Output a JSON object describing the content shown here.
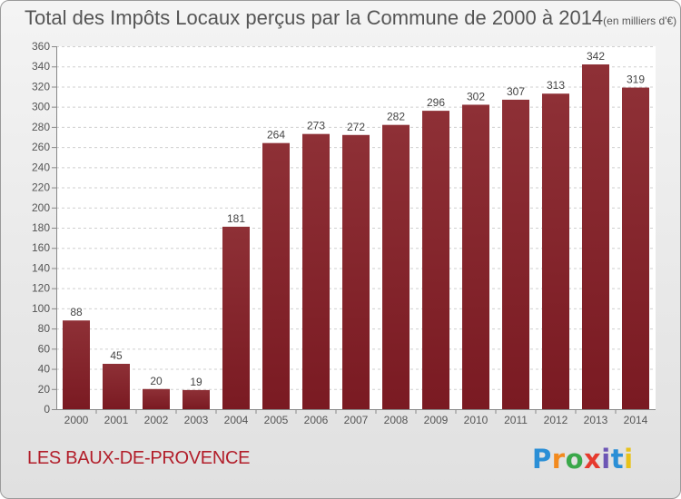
{
  "title": "Total des Impôts Locaux perçus par la Commune de 2000 à 2014",
  "title_unit": "(en milliers d'€)",
  "commune": "LES BAUX-DE-PROVENCE",
  "brand": {
    "letters": [
      "P",
      "r",
      "o",
      "x",
      "i",
      "t",
      "i"
    ],
    "colors": [
      "#2b8fd6",
      "#f28a1e",
      "#3aa84a",
      "#e63a2e",
      "#6d56b5",
      "#2b8fd6",
      "#e8c21a"
    ]
  },
  "chart_data": {
    "type": "bar",
    "title": "Total des Impôts Locaux perçus par la Commune de 2000 à 2014",
    "xlabel": "",
    "ylabel": "",
    "categories": [
      "2000",
      "2001",
      "2002",
      "2003",
      "2004",
      "2005",
      "2006",
      "2007",
      "2008",
      "2009",
      "2010",
      "2011",
      "2012",
      "2013",
      "2014"
    ],
    "values": [
      88,
      45,
      20,
      19,
      181,
      264,
      273,
      272,
      282,
      296,
      302,
      307,
      313,
      342,
      319
    ],
    "ylim": [
      0,
      360
    ],
    "yticks": [
      0,
      20,
      40,
      60,
      80,
      100,
      120,
      140,
      160,
      180,
      200,
      220,
      240,
      260,
      280,
      300,
      320,
      340,
      360
    ],
    "grid": true,
    "bar_color": "#7a1a22",
    "bar_color_top": "#8e3036"
  }
}
